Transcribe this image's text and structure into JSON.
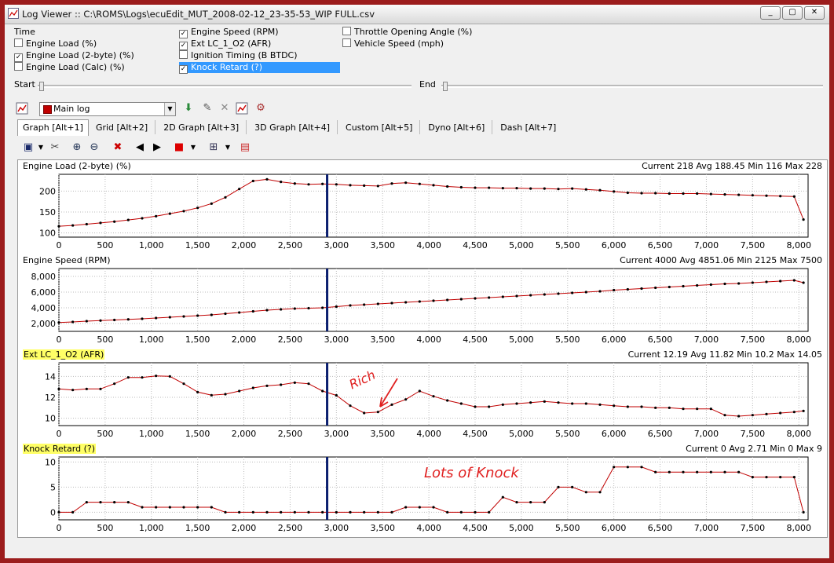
{
  "window": {
    "title": "Log Viewer :: C:\\ROMS\\Logs\\ecuEdit_MUT_2008-02-12_23-35-53_WIP FULL.csv",
    "buttons": [
      "_",
      "▢",
      "✕"
    ]
  },
  "parameters": {
    "col1": [
      {
        "label": "Time",
        "checked": null
      },
      {
        "label": "Engine Load (%)",
        "checked": false
      },
      {
        "label": "Engine Load (2-byte) (%)",
        "checked": true
      },
      {
        "label": "Engine Load (Calc) (%)",
        "checked": false
      }
    ],
    "col2": [
      {
        "label": "Engine Speed (RPM)",
        "checked": true
      },
      {
        "label": "Ext LC_1_O2 (AFR)",
        "checked": true
      },
      {
        "label": "Ignition Timing (B BTDC)",
        "checked": false
      },
      {
        "label": "Knock Retard (?)",
        "checked": true,
        "selected": true
      }
    ],
    "col3": [
      {
        "label": "Throttle Opening Angle (%)",
        "checked": false
      },
      {
        "label": "Vehicle Speed (mph)",
        "checked": false
      }
    ]
  },
  "range": {
    "start_label": "Start",
    "end_label": "End"
  },
  "log_select": {
    "value": "Main log",
    "color": "#c00000"
  },
  "tabs": [
    {
      "label": "Graph [Alt+1]",
      "active": true
    },
    {
      "label": "Grid [Alt+2]"
    },
    {
      "label": "2D Graph [Alt+3]"
    },
    {
      "label": "3D Graph [Alt+4]"
    },
    {
      "label": "Custom [Alt+5]"
    },
    {
      "label": "Dyno [Alt+6]"
    },
    {
      "label": "Dash [Alt+7]"
    }
  ],
  "icons": {
    "toolbar1": [
      "chart-icon",
      "arrow-down-icon",
      "tools-icon",
      "delete-icon",
      "chart-icon",
      "chart-delete-icon"
    ],
    "toolbar2": [
      "save-icon",
      "dropdown-icon",
      "cut-icon",
      "zoom-in-icon",
      "zoom-out-icon",
      "close-icon",
      "prev-icon",
      "next-icon",
      "color-icon",
      "dropdown-icon",
      "grid-icon",
      "dropdown-icon",
      "chart-settings-icon"
    ]
  },
  "colors": {
    "series": "#c00000",
    "cursor": "#0a1e6e",
    "highlight": "#ffff66",
    "annotation": "#e02020"
  },
  "panes": [
    {
      "title": "Engine Load (2-byte) (%)",
      "stats": "Current 218 Avg 188.45 Min 116 Max 228",
      "highlight": false
    },
    {
      "title": "Engine Speed (RPM)",
      "stats": "Current 4000 Avg 4851.06 Min 2125 Max 7500",
      "highlight": false
    },
    {
      "title": "Ext LC_1_O2 (AFR)",
      "stats": "Current 12.19 Avg 11.82 Min 10.2 Max 14.05",
      "highlight": true
    },
    {
      "title": "Knock Retard (?)",
      "stats": "Current 0 Avg 2.71 Min 0 Max 9",
      "highlight": true
    }
  ],
  "annotations": [
    {
      "text": "Rich"
    },
    {
      "text": "Lots of Knock"
    }
  ],
  "chart_data": [
    {
      "type": "line",
      "title": "Engine Load (2-byte) (%)",
      "xlim": [
        0,
        8100
      ],
      "ylim": [
        90,
        240
      ],
      "yticks": [
        100,
        150,
        200,
        250
      ],
      "xticks": [
        0,
        500,
        1000,
        1500,
        2000,
        2500,
        3000,
        3500,
        4000,
        4500,
        5000,
        5500,
        6000,
        6500,
        7000,
        7500,
        8000
      ],
      "cursor_x": 2900,
      "x": [
        0,
        150,
        300,
        450,
        600,
        750,
        900,
        1050,
        1200,
        1350,
        1500,
        1650,
        1800,
        1950,
        2100,
        2250,
        2400,
        2550,
        2700,
        2850,
        3000,
        3150,
        3300,
        3450,
        3600,
        3750,
        3900,
        4050,
        4200,
        4350,
        4500,
        4650,
        4800,
        4950,
        5100,
        5250,
        5400,
        5550,
        5700,
        5850,
        6000,
        6150,
        6300,
        6450,
        6600,
        6750,
        6900,
        7050,
        7200,
        7350,
        7500,
        7650,
        7800,
        7950,
        8050
      ],
      "y": [
        116,
        118,
        121,
        124,
        127,
        131,
        135,
        140,
        146,
        152,
        160,
        170,
        185,
        205,
        224,
        228,
        222,
        218,
        216,
        217,
        216,
        214,
        213,
        212,
        218,
        220,
        217,
        214,
        211,
        209,
        208,
        208,
        207,
        207,
        206,
        206,
        205,
        206,
        204,
        202,
        199,
        196,
        195,
        195,
        194,
        194,
        194,
        193,
        192,
        191,
        190,
        189,
        188,
        187,
        132
      ]
    },
    {
      "type": "line",
      "title": "Engine Speed (RPM)",
      "xlim": [
        0,
        8100
      ],
      "ylim": [
        1000,
        9000
      ],
      "yticks": [
        2000,
        4000,
        6000,
        8000
      ],
      "xticks": [
        0,
        500,
        1000,
        1500,
        2000,
        2500,
        3000,
        3500,
        4000,
        4500,
        5000,
        5500,
        6000,
        6500,
        7000,
        7500,
        8000
      ],
      "cursor_x": 2900,
      "x": [
        0,
        150,
        300,
        450,
        600,
        750,
        900,
        1050,
        1200,
        1350,
        1500,
        1650,
        1800,
        1950,
        2100,
        2250,
        2400,
        2550,
        2700,
        2850,
        3000,
        3150,
        3300,
        3450,
        3600,
        3750,
        3900,
        4050,
        4200,
        4350,
        4500,
        4650,
        4800,
        4950,
        5100,
        5250,
        5400,
        5550,
        5700,
        5850,
        6000,
        6150,
        6300,
        6450,
        6600,
        6750,
        6900,
        7050,
        7200,
        7350,
        7500,
        7650,
        7800,
        7950,
        8050
      ],
      "y": [
        2125,
        2200,
        2300,
        2375,
        2450,
        2525,
        2600,
        2700,
        2800,
        2900,
        3000,
        3100,
        3250,
        3400,
        3550,
        3700,
        3800,
        3900,
        3950,
        4000,
        4150,
        4300,
        4400,
        4500,
        4600,
        4700,
        4800,
        4900,
        5000,
        5100,
        5200,
        5300,
        5400,
        5500,
        5600,
        5700,
        5800,
        5900,
        6000,
        6100,
        6250,
        6350,
        6450,
        6550,
        6650,
        6750,
        6850,
        6950,
        7050,
        7100,
        7200,
        7300,
        7400,
        7500,
        7200
      ]
    },
    {
      "type": "line",
      "title": "Ext LC_1_O2 (AFR)",
      "xlim": [
        0,
        8100
      ],
      "ylim": [
        9.3,
        15.3
      ],
      "yticks": [
        10,
        12,
        14
      ],
      "xticks": [
        0,
        500,
        1000,
        1500,
        2000,
        2500,
        3000,
        3500,
        4000,
        4500,
        5000,
        5500,
        6000,
        6500,
        7000,
        7500,
        8000
      ],
      "cursor_x": 2900,
      "x": [
        0,
        150,
        300,
        450,
        600,
        750,
        900,
        1050,
        1200,
        1350,
        1500,
        1650,
        1800,
        1950,
        2100,
        2250,
        2400,
        2550,
        2700,
        2850,
        3000,
        3150,
        3300,
        3450,
        3600,
        3750,
        3900,
        4050,
        4200,
        4350,
        4500,
        4650,
        4800,
        4950,
        5100,
        5250,
        5400,
        5550,
        5700,
        5850,
        6000,
        6150,
        6300,
        6450,
        6600,
        6750,
        6900,
        7050,
        7200,
        7350,
        7500,
        7650,
        7800,
        7950,
        8050
      ],
      "y": [
        12.8,
        12.7,
        12.8,
        12.8,
        13.3,
        13.9,
        13.9,
        14.05,
        14.0,
        13.3,
        12.5,
        12.2,
        12.3,
        12.6,
        12.9,
        13.1,
        13.2,
        13.4,
        13.3,
        12.6,
        12.19,
        11.2,
        10.5,
        10.6,
        11.3,
        11.8,
        12.6,
        12.1,
        11.7,
        11.4,
        11.1,
        11.1,
        11.3,
        11.4,
        11.5,
        11.6,
        11.5,
        11.4,
        11.4,
        11.3,
        11.2,
        11.1,
        11.1,
        11.0,
        11.0,
        10.9,
        10.9,
        10.9,
        10.3,
        10.2,
        10.3,
        10.4,
        10.5,
        10.6,
        10.7
      ]
    },
    {
      "type": "line",
      "title": "Knock Retard (?)",
      "xlim": [
        0,
        8100
      ],
      "ylim": [
        -1.5,
        11
      ],
      "yticks": [
        0,
        5,
        10
      ],
      "xticks": [
        0,
        500,
        1000,
        1500,
        2000,
        2500,
        3000,
        3500,
        4000,
        4500,
        5000,
        5500,
        6000,
        6500,
        7000,
        7500,
        8000
      ],
      "cursor_x": 2900,
      "x": [
        0,
        150,
        300,
        450,
        600,
        750,
        900,
        1050,
        1200,
        1350,
        1500,
        1650,
        1800,
        1950,
        2100,
        2250,
        2400,
        2550,
        2700,
        2850,
        3000,
        3150,
        3300,
        3450,
        3600,
        3750,
        3900,
        4050,
        4200,
        4350,
        4500,
        4650,
        4800,
        4950,
        5100,
        5250,
        5400,
        5550,
        5700,
        5850,
        6000,
        6150,
        6300,
        6450,
        6600,
        6750,
        6900,
        7050,
        7200,
        7350,
        7500,
        7650,
        7800,
        7950,
        8050
      ],
      "y": [
        0,
        0,
        2,
        2,
        2,
        2,
        1,
        1,
        1,
        1,
        1,
        1,
        0,
        0,
        0,
        0,
        0,
        0,
        0,
        0,
        0,
        0,
        0,
        0,
        0,
        1,
        1,
        1,
        0,
        0,
        0,
        0,
        3,
        2,
        2,
        2,
        5,
        5,
        4,
        4,
        9,
        9,
        9,
        8,
        8,
        8,
        8,
        8,
        8,
        8,
        7,
        7,
        7,
        7,
        0
      ]
    }
  ]
}
